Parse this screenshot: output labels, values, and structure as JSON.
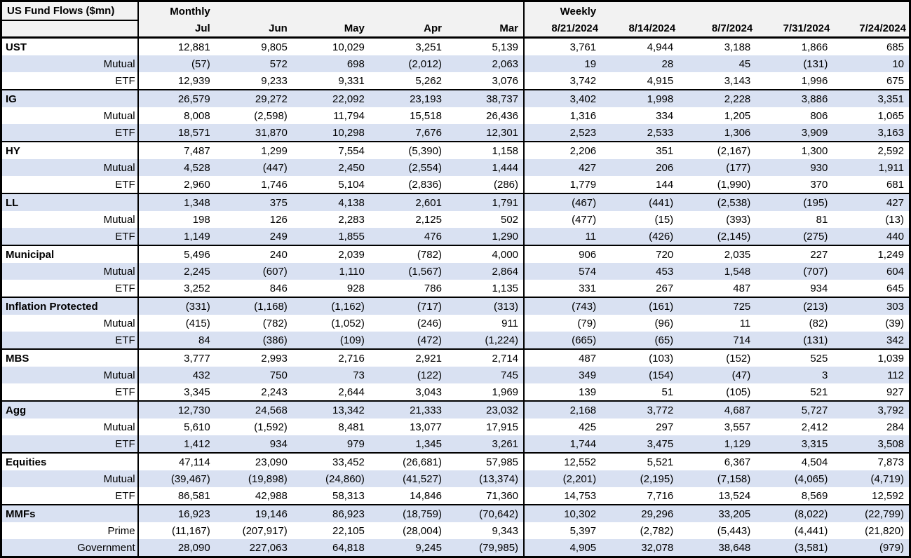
{
  "chart_data": {
    "type": "table",
    "title": "US Fund Flows ($mn)",
    "sections": {
      "monthly": {
        "label": "Monthly",
        "columns": [
          "Jul",
          "Jun",
          "May",
          "Apr",
          "Mar"
        ]
      },
      "weekly": {
        "label": "Weekly",
        "columns": [
          "8/21/2024",
          "8/14/2024",
          "8/7/2024",
          "7/31/2024",
          "7/24/2024"
        ]
      }
    },
    "rows": [
      {
        "label": "UST",
        "type": "category",
        "monthly": [
          "12,881",
          "9,805",
          "10,029",
          "3,251",
          "5,139"
        ],
        "weekly": [
          "3,761",
          "4,944",
          "3,188",
          "1,866",
          "685"
        ]
      },
      {
        "label": "Mutual",
        "type": "sub",
        "monthly": [
          "(57)",
          "572",
          "698",
          "(2,012)",
          "2,063"
        ],
        "weekly": [
          "19",
          "28",
          "45",
          "(131)",
          "10"
        ]
      },
      {
        "label": "ETF",
        "type": "sub",
        "monthly": [
          "12,939",
          "9,233",
          "9,331",
          "5,262",
          "3,076"
        ],
        "weekly": [
          "3,742",
          "4,915",
          "3,143",
          "1,996",
          "675"
        ]
      },
      {
        "label": "IG",
        "type": "category",
        "monthly": [
          "26,579",
          "29,272",
          "22,092",
          "23,193",
          "38,737"
        ],
        "weekly": [
          "3,402",
          "1,998",
          "2,228",
          "3,886",
          "3,351"
        ]
      },
      {
        "label": "Mutual",
        "type": "sub",
        "monthly": [
          "8,008",
          "(2,598)",
          "11,794",
          "15,518",
          "26,436"
        ],
        "weekly": [
          "1,316",
          "334",
          "1,205",
          "806",
          "1,065"
        ]
      },
      {
        "label": "ETF",
        "type": "sub",
        "monthly": [
          "18,571",
          "31,870",
          "10,298",
          "7,676",
          "12,301"
        ],
        "weekly": [
          "2,523",
          "2,533",
          "1,306",
          "3,909",
          "3,163"
        ]
      },
      {
        "label": "HY",
        "type": "category",
        "monthly": [
          "7,487",
          "1,299",
          "7,554",
          "(5,390)",
          "1,158"
        ],
        "weekly": [
          "2,206",
          "351",
          "(2,167)",
          "1,300",
          "2,592"
        ]
      },
      {
        "label": "Mutual",
        "type": "sub",
        "monthly": [
          "4,528",
          "(447)",
          "2,450",
          "(2,554)",
          "1,444"
        ],
        "weekly": [
          "427",
          "206",
          "(177)",
          "930",
          "1,911"
        ]
      },
      {
        "label": "ETF",
        "type": "sub",
        "monthly": [
          "2,960",
          "1,746",
          "5,104",
          "(2,836)",
          "(286)"
        ],
        "weekly": [
          "1,779",
          "144",
          "(1,990)",
          "370",
          "681"
        ]
      },
      {
        "label": "LL",
        "type": "category",
        "monthly": [
          "1,348",
          "375",
          "4,138",
          "2,601",
          "1,791"
        ],
        "weekly": [
          "(467)",
          "(441)",
          "(2,538)",
          "(195)",
          "427"
        ]
      },
      {
        "label": "Mutual",
        "type": "sub",
        "monthly": [
          "198",
          "126",
          "2,283",
          "2,125",
          "502"
        ],
        "weekly": [
          "(477)",
          "(15)",
          "(393)",
          "81",
          "(13)"
        ]
      },
      {
        "label": "ETF",
        "type": "sub",
        "monthly": [
          "1,149",
          "249",
          "1,855",
          "476",
          "1,290"
        ],
        "weekly": [
          "11",
          "(426)",
          "(2,145)",
          "(275)",
          "440"
        ]
      },
      {
        "label": "Municipal",
        "type": "category",
        "monthly": [
          "5,496",
          "240",
          "2,039",
          "(782)",
          "4,000"
        ],
        "weekly": [
          "906",
          "720",
          "2,035",
          "227",
          "1,249"
        ]
      },
      {
        "label": "Mutual",
        "type": "sub",
        "monthly": [
          "2,245",
          "(607)",
          "1,110",
          "(1,567)",
          "2,864"
        ],
        "weekly": [
          "574",
          "453",
          "1,548",
          "(707)",
          "604"
        ]
      },
      {
        "label": "ETF",
        "type": "sub",
        "monthly": [
          "3,252",
          "846",
          "928",
          "786",
          "1,135"
        ],
        "weekly": [
          "331",
          "267",
          "487",
          "934",
          "645"
        ]
      },
      {
        "label": "Inflation Protected",
        "type": "category",
        "monthly": [
          "(331)",
          "(1,168)",
          "(1,162)",
          "(717)",
          "(313)"
        ],
        "weekly": [
          "(743)",
          "(161)",
          "725",
          "(213)",
          "303"
        ]
      },
      {
        "label": "Mutual",
        "type": "sub",
        "monthly": [
          "(415)",
          "(782)",
          "(1,052)",
          "(246)",
          "911"
        ],
        "weekly": [
          "(79)",
          "(96)",
          "11",
          "(82)",
          "(39)"
        ]
      },
      {
        "label": "ETF",
        "type": "sub",
        "monthly": [
          "84",
          "(386)",
          "(109)",
          "(472)",
          "(1,224)"
        ],
        "weekly": [
          "(665)",
          "(65)",
          "714",
          "(131)",
          "342"
        ]
      },
      {
        "label": "MBS",
        "type": "category",
        "monthly": [
          "3,777",
          "2,993",
          "2,716",
          "2,921",
          "2,714"
        ],
        "weekly": [
          "487",
          "(103)",
          "(152)",
          "525",
          "1,039"
        ]
      },
      {
        "label": "Mutual",
        "type": "sub",
        "monthly": [
          "432",
          "750",
          "73",
          "(122)",
          "745"
        ],
        "weekly": [
          "349",
          "(154)",
          "(47)",
          "3",
          "112"
        ]
      },
      {
        "label": "ETF",
        "type": "sub",
        "monthly": [
          "3,345",
          "2,243",
          "2,644",
          "3,043",
          "1,969"
        ],
        "weekly": [
          "139",
          "51",
          "(105)",
          "521",
          "927"
        ]
      },
      {
        "label": "Agg",
        "type": "category",
        "monthly": [
          "12,730",
          "24,568",
          "13,342",
          "21,333",
          "23,032"
        ],
        "weekly": [
          "2,168",
          "3,772",
          "4,687",
          "5,727",
          "3,792"
        ]
      },
      {
        "label": "Mutual",
        "type": "sub",
        "monthly": [
          "5,610",
          "(1,592)",
          "8,481",
          "13,077",
          "17,915"
        ],
        "weekly": [
          "425",
          "297",
          "3,557",
          "2,412",
          "284"
        ]
      },
      {
        "label": "ETF",
        "type": "sub",
        "monthly": [
          "1,412",
          "934",
          "979",
          "1,345",
          "3,261"
        ],
        "weekly": [
          "1,744",
          "3,475",
          "1,129",
          "3,315",
          "3,508"
        ]
      },
      {
        "label": "Equities",
        "type": "category",
        "monthly": [
          "47,114",
          "23,090",
          "33,452",
          "(26,681)",
          "57,985"
        ],
        "weekly": [
          "12,552",
          "5,521",
          "6,367",
          "4,504",
          "7,873"
        ]
      },
      {
        "label": "Mutual",
        "type": "sub",
        "monthly": [
          "(39,467)",
          "(19,898)",
          "(24,860)",
          "(41,527)",
          "(13,374)"
        ],
        "weekly": [
          "(2,201)",
          "(2,195)",
          "(7,158)",
          "(4,065)",
          "(4,719)"
        ]
      },
      {
        "label": "ETF",
        "type": "sub",
        "monthly": [
          "86,581",
          "42,988",
          "58,313",
          "14,846",
          "71,360"
        ],
        "weekly": [
          "14,753",
          "7,716",
          "13,524",
          "8,569",
          "12,592"
        ]
      },
      {
        "label": "MMFs",
        "type": "category",
        "monthly": [
          "16,923",
          "19,146",
          "86,923",
          "(18,759)",
          "(70,642)"
        ],
        "weekly": [
          "10,302",
          "29,296",
          "33,205",
          "(8,022)",
          "(22,799)"
        ]
      },
      {
        "label": "Prime",
        "type": "sub",
        "monthly": [
          "(11,167)",
          "(207,917)",
          "22,105",
          "(28,004)",
          "9,343"
        ],
        "weekly": [
          "5,397",
          "(2,782)",
          "(5,443)",
          "(4,441)",
          "(21,820)"
        ]
      },
      {
        "label": "Government",
        "type": "sub",
        "monthly": [
          "28,090",
          "227,063",
          "64,818",
          "9,245",
          "(79,985)"
        ],
        "weekly": [
          "4,905",
          "32,078",
          "38,648",
          "(3,581)",
          "(979)"
        ]
      }
    ],
    "layout": {
      "stripe_color": "#d9e1f2",
      "header_bg": "#f2f2f2",
      "border_color": "#000000",
      "negative_format": "parentheses",
      "grid": "group-borders",
      "legend_position": "none"
    }
  }
}
